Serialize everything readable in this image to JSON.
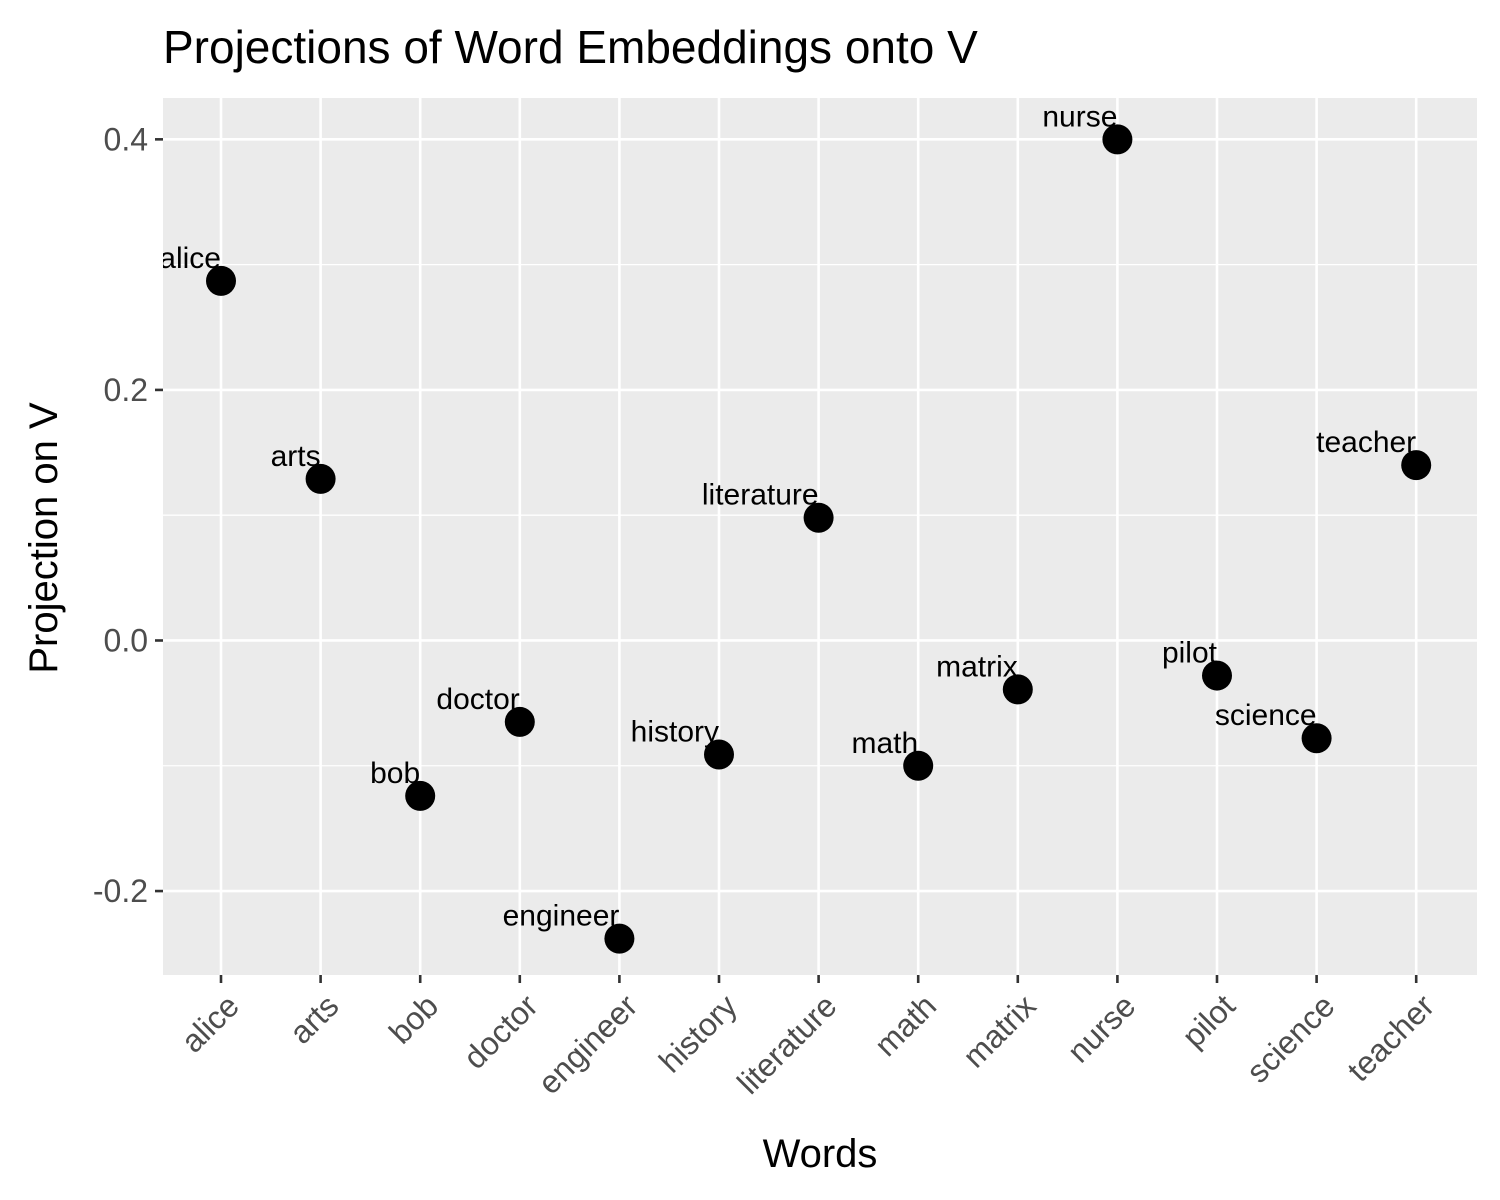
{
  "chart_data": {
    "type": "scatter",
    "title": "Projections of Word Embeddings onto V",
    "xlabel": "Words",
    "ylabel": "Projection on V",
    "categories": [
      "alice",
      "arts",
      "bob",
      "doctor",
      "engineer",
      "history",
      "literature",
      "math",
      "matrix",
      "nurse",
      "pilot",
      "science",
      "teacher"
    ],
    "values": [
      0.287,
      0.129,
      -0.124,
      -0.065,
      -0.238,
      -0.091,
      0.098,
      -0.1,
      -0.039,
      0.4,
      -0.028,
      -0.078,
      0.14
    ],
    "point_labels": [
      "alice",
      "arts",
      "bob",
      "doctor",
      "engineer",
      "history",
      "literature",
      "math",
      "matrix",
      "nurse",
      "pilot",
      "science",
      "teacher"
    ],
    "yticks": [
      -0.2,
      0.0,
      0.2,
      0.4
    ],
    "ytick_labels": [
      "-0.2",
      "0.0",
      "0.2",
      "0.4"
    ],
    "ylim": [
      -0.267,
      0.433
    ],
    "grid": true,
    "legend": "none",
    "colors": {
      "panel": "#ebebeb",
      "grid": "#ffffff",
      "point": "#000000",
      "tick_text": "#4d4d4d"
    }
  }
}
